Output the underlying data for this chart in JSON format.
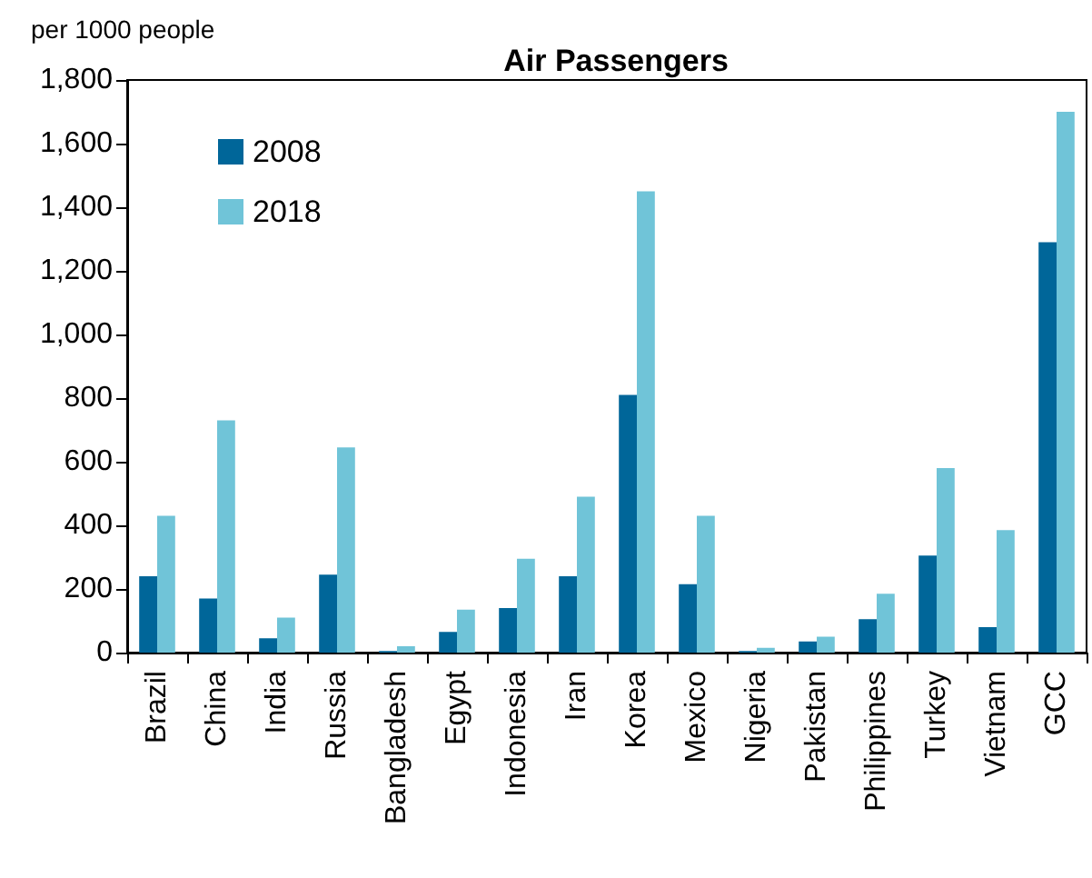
{
  "chart_data": {
    "type": "bar",
    "title": "Air Passengers",
    "ylabel": "per 1000 people",
    "categories": [
      "Brazil",
      "China",
      "India",
      "Russia",
      "Bangladesh",
      "Egypt",
      "Indonesia",
      "Iran",
      "Korea",
      "Mexico",
      "Nigeria",
      "Pakistan",
      "Philippines",
      "Turkey",
      "Vietnam",
      "GCC"
    ],
    "series": [
      {
        "name": "2008",
        "color": "#006699",
        "values": [
          240,
          170,
          45,
          245,
          5,
          65,
          140,
          240,
          810,
          215,
          5,
          35,
          105,
          305,
          80,
          1290
        ]
      },
      {
        "name": "2018",
        "color": "#70c4d8",
        "values": [
          430,
          730,
          110,
          645,
          20,
          135,
          295,
          490,
          1450,
          430,
          15,
          50,
          185,
          580,
          385,
          1700
        ]
      }
    ],
    "ylim": [
      0,
      1800
    ],
    "yticks": [
      0,
      200,
      400,
      600,
      800,
      {
        "value": 1000,
        "label": "1,000"
      },
      {
        "value": 1200,
        "label": "1,200"
      },
      {
        "value": 1400,
        "label": "1,400"
      },
      {
        "value": 1600,
        "label": "1,600"
      },
      {
        "value": 1800,
        "label": "1,800"
      }
    ],
    "grid": false,
    "legend": "top left"
  }
}
